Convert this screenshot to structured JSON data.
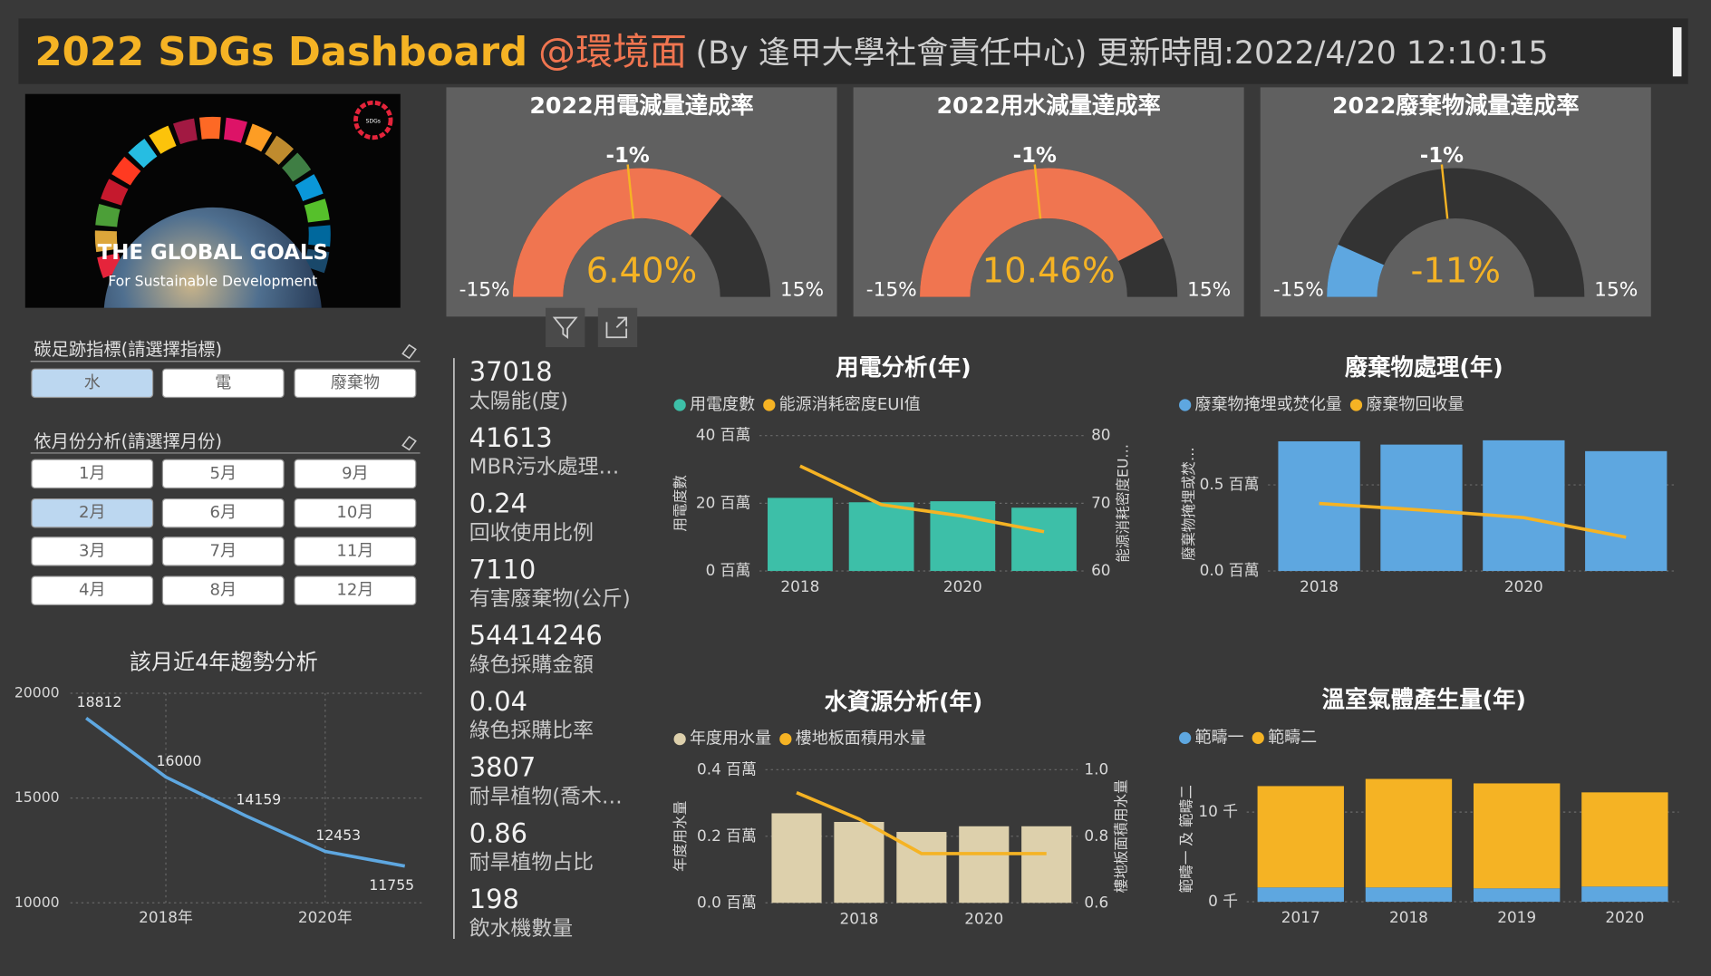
{
  "header": {
    "title": "2022 SDGs Dashboard",
    "topic": "@環境面",
    "subtitle": "(By 逢甲大學社會責任中心) 更新時間:2022/4/20 12:10:15"
  },
  "image": {
    "title": "THE GLOBAL GOALS",
    "subtitle": "For Sustainable Development",
    "badge": "SDGs"
  },
  "slicers": [
    {
      "title": "碳足跡指標(請選擇指標)",
      "options": [
        "水",
        "電",
        "廢棄物"
      ],
      "selected": [
        "水"
      ]
    },
    {
      "title": "依月份分析(請選擇月份)",
      "options": [
        "1月",
        "2月",
        "3月",
        "4月",
        "5月",
        "6月",
        "7月",
        "8月",
        "9月",
        "10月",
        "11月",
        "12月"
      ],
      "selected": [
        "2月"
      ]
    }
  ],
  "kpis": [
    {
      "value": 37018,
      "label": "太陽能(度)"
    },
    {
      "value": 41613,
      "label": "MBR污水處理…"
    },
    {
      "value": 0.24,
      "label": "回收使用比例"
    },
    {
      "value": 7110,
      "label": "有害廢棄物(公斤)"
    },
    {
      "value": 54414246,
      "label": "綠色採購金額"
    },
    {
      "value": 0.04,
      "label": "綠色採購比率"
    },
    {
      "value": 3807,
      "label": "耐旱植物(喬木…"
    },
    {
      "value": 0.86,
      "label": "耐旱植物占比"
    },
    {
      "value": 198,
      "label": "飲水機數量"
    }
  ],
  "chart_data": [
    {
      "type": "gauge",
      "title": "2022用電減量達成率",
      "values": [
        6.4
      ],
      "value_labels": [
        "6.40%"
      ],
      "color": "#f07550",
      "range": [
        {
          "value": -15,
          "label": "-15%"
        },
        {
          "value": 15,
          "label": "15%"
        }
      ],
      "target": {
        "value": -1,
        "label": "-1%"
      }
    },
    {
      "type": "gauge",
      "title": "2022用水減量達成率",
      "values": [
        10.46
      ],
      "value_labels": [
        "10.46%"
      ],
      "color": "#f07550",
      "range": [
        {
          "value": -15,
          "label": "-15%"
        },
        {
          "value": 15,
          "label": "15%"
        }
      ],
      "target": {
        "value": -1,
        "label": "-1%"
      }
    },
    {
      "type": "gauge",
      "title": "2022廢棄物減量達成率",
      "values": [
        -11
      ],
      "value_labels": [
        "-11%"
      ],
      "color": "#5ea7e0",
      "range": [
        {
          "value": -15,
          "label": "-15%"
        },
        {
          "value": 15,
          "label": "15%"
        }
      ],
      "target": {
        "value": -1,
        "label": "-1%"
      }
    },
    {
      "type": "line",
      "title": "該月近4年趨勢分析",
      "categories": [
        null,
        "2018年",
        null,
        "2020年",
        null
      ],
      "values": [
        18812,
        16000,
        14159,
        12453,
        11755
      ],
      "color": "#5ea7e0",
      "ylim": [
        10000,
        20000
      ],
      "yticks": [
        10000,
        15000,
        20000
      ],
      "grid": true
    },
    {
      "type": "combo",
      "title": "用電分析(年)",
      "categories": [
        "2018",
        null,
        "2020",
        null
      ],
      "series": [
        {
          "name": "用電度數",
          "type": "bar",
          "color": "#3dbfa8",
          "values": [
            21.6,
            20.3,
            20.6,
            18.7
          ]
        },
        {
          "name": "能源消耗密度EUI值",
          "type": "line",
          "axis": "y2",
          "color": "#f5b324",
          "values": [
            75.5,
            69.8,
            68.1,
            65.8
          ]
        }
      ],
      "y_label": "用電度數",
      "y2_label": "能源消耗密度EU…",
      "ylim": [
        0,
        40
      ],
      "yticks": [
        {
          "value": 0,
          "label": "0 百萬"
        },
        {
          "value": 20,
          "label": "20 百萬"
        },
        {
          "value": 40,
          "label": "40 百萬"
        }
      ],
      "y2lim": [
        60,
        80
      ],
      "y2ticks": [
        60,
        70,
        80
      ],
      "grid": true
    },
    {
      "type": "combo",
      "title": "廢棄物處理(年)",
      "categories": [
        "2018",
        null,
        "2020",
        null
      ],
      "series": [
        {
          "name": "廢棄物掩埋或焚化量",
          "type": "bar",
          "color": "#5ea7e0",
          "values": [
            0.753,
            0.734,
            0.759,
            0.696
          ]
        },
        {
          "name": "廢棄物回收量",
          "type": "line",
          "color": "#f5b324",
          "values": [
            0.392,
            0.354,
            0.31,
            0.196
          ]
        }
      ],
      "y_label": "廢棄物掩埋或焚…",
      "ylim": [
        0,
        0.78
      ],
      "yticks": [
        {
          "value": 0,
          "label": "0.0 百萬"
        },
        {
          "value": 0.5,
          "label": "0.5 百萬"
        }
      ],
      "grid": true
    },
    {
      "type": "combo",
      "title": "水資源分析(年)",
      "categories": [
        null,
        "2018",
        null,
        "2020",
        null
      ],
      "series": [
        {
          "name": "年度用水量",
          "type": "bar",
          "color": "#ddd0ac",
          "values": [
            0.269,
            0.243,
            0.213,
            0.23,
            0.23
          ]
        },
        {
          "name": "樓地板面積用水量",
          "type": "line",
          "axis": "y2",
          "color": "#f5b324",
          "values": [
            0.931,
            0.852,
            0.748,
            0.748,
            0.748
          ]
        }
      ],
      "y_label": "年度用水量",
      "y2_label": "樓地板面積用水量",
      "ylim": [
        0,
        0.4
      ],
      "yticks": [
        {
          "value": 0,
          "label": "0.0 百萬"
        },
        {
          "value": 0.2,
          "label": "0.2 百萬"
        },
        {
          "value": 0.4,
          "label": "0.4 百萬"
        }
      ],
      "y2lim": [
        0.6,
        1.0
      ],
      "y2ticks": [
        0.6,
        0.8,
        {
          "value": 1.0,
          "label": "1.0"
        }
      ],
      "grid": true
    },
    {
      "type": "stacked_bar",
      "title": "溫室氣體產生量(年)",
      "categories": [
        "2017",
        "2018",
        "2019",
        "2020"
      ],
      "series": [
        {
          "name": "範疇一",
          "color": "#5ea7e0",
          "values": [
            1.6,
            1.6,
            1.5,
            1.7
          ]
        },
        {
          "name": "範疇二",
          "color": "#f5b324",
          "values": [
            11.3,
            12.1,
            11.7,
            10.5
          ]
        }
      ],
      "y_label": "範疇一 及 範疇二",
      "ylim": [
        0,
        14
      ],
      "yticks": [
        {
          "value": 0,
          "label": "0 千"
        },
        {
          "value": 10,
          "label": "10 千"
        }
      ],
      "grid": true
    }
  ]
}
